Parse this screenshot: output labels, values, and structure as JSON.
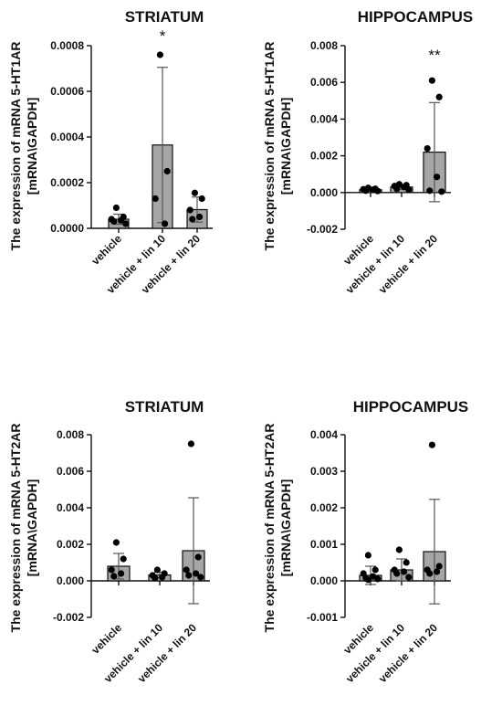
{
  "chart_data": [
    {
      "type": "bar",
      "title": "STRIATUM",
      "ylabel_line1": "The expression of mRNA 5-HT1AR",
      "ylabel_line2": "[mRNA\\GAPDH]",
      "categories": [
        "vehicle",
        "vehicle + lin 10",
        "vehicle + lin 20"
      ],
      "values": [
        4e-05,
        0.000365,
        8.2e-05
      ],
      "error": [
        2.2e-05,
        0.00034,
        5.5e-05
      ],
      "points": [
        [
          9e-05,
          5e-05,
          4e-05,
          3.5e-05,
          3e-05,
          2e-05
        ],
        [
          0.00076,
          0.00025,
          0.00013,
          2e-05
        ],
        [
          0.000155,
          0.00013,
          8e-05,
          5e-05,
          4e-05
        ]
      ],
      "ticks": [
        "0.0000",
        "0.0002",
        "0.0004",
        "0.0006",
        "0.0008"
      ],
      "tick_values": [
        0,
        0.0002,
        0.0004,
        0.0006,
        0.0008
      ],
      "ylim": [
        0,
        0.0008
      ],
      "significance": [
        {
          "category": 1,
          "label": "*",
          "y": 0.00082
        }
      ]
    },
    {
      "type": "bar",
      "title": "HIPPOCAMPUS",
      "ylabel_line1": "The expression of mRNA 5-HT1AR",
      "ylabel_line2": "[mRNA\\GAPDH]",
      "categories": [
        "vehicle",
        "vehicle + lin 10",
        "vehicle + lin 20"
      ],
      "values": [
        0.00015,
        0.0003,
        0.0022
      ],
      "error": [
        8e-05,
        0.00012,
        0.0027
      ],
      "points": [
        [
          0.00025,
          0.0002,
          0.00018,
          0.00015,
          0.0001,
          8e-05
        ],
        [
          0.00045,
          0.0004,
          0.00035,
          0.0003,
          0.0002,
          0.00015
        ],
        [
          0.0061,
          0.0052,
          0.0024,
          0.00085,
          0.0001,
          5e-05
        ]
      ],
      "ticks": [
        "-0.002",
        "0.000",
        "0.002",
        "0.004",
        "0.006",
        "0.008"
      ],
      "tick_values": [
        -0.002,
        0,
        0.002,
        0.004,
        0.006,
        0.008
      ],
      "ylim": [
        -0.002,
        0.008
      ],
      "significance": [
        {
          "category": 2,
          "label": "**",
          "y": 0.0072
        }
      ]
    },
    {
      "type": "bar",
      "title": "STRIATUM",
      "ylabel_line1": "The expression of mRNA 5-HT2AR",
      "ylabel_line2": "[mRNA\\GAPDH]",
      "categories": [
        "vehicle",
        "vehicle + lin 10",
        "vehicle + lin 20"
      ],
      "values": [
        0.0008,
        0.00032,
        0.00165
      ],
      "error": [
        0.0007,
        0.00015,
        0.0029
      ],
      "points": [
        [
          0.0021,
          0.0012,
          0.0006,
          0.0004,
          0.00025
        ],
        [
          0.0006,
          0.0004,
          0.0003,
          0.0002,
          0.00015
        ],
        [
          0.0075,
          0.0013,
          0.0006,
          0.0004,
          0.0003,
          0.0002
        ]
      ],
      "ticks": [
        "-0.002",
        "0.000",
        "0.002",
        "0.004",
        "0.006",
        "0.008"
      ],
      "tick_values": [
        -0.002,
        0,
        0.002,
        0.004,
        0.006,
        0.008
      ],
      "ylim": [
        -0.002,
        0.008
      ],
      "significance": []
    },
    {
      "type": "bar",
      "title": "HIPPOCAMPUS",
      "ylabel_line1": "The expression of mRNA 5-HT2AR",
      "ylabel_line2": "[mRNA\\GAPDH]",
      "categories": [
        "vehicle",
        "vehicle + lin 10",
        "vehicle + lin 20"
      ],
      "values": [
        0.00015,
        0.0003,
        0.0008
      ],
      "error": [
        0.00025,
        0.0003,
        0.00143
      ],
      "points": [
        [
          0.0007,
          0.0003,
          0.0002,
          0.00012,
          8e-05,
          5e-05,
          3e-05
        ],
        [
          0.00085,
          0.0005,
          0.0003,
          0.00025,
          0.0002,
          0.0001
        ],
        [
          0.00372,
          0.0004,
          0.0003,
          0.00025,
          0.0002
        ]
      ],
      "ticks": [
        "-0.001",
        "0.000",
        "0.001",
        "0.002",
        "0.003",
        "0.004"
      ],
      "tick_values": [
        -0.001,
        0,
        0.001,
        0.002,
        0.003,
        0.004
      ],
      "ylim": [
        -0.001,
        0.004
      ],
      "significance": []
    }
  ]
}
